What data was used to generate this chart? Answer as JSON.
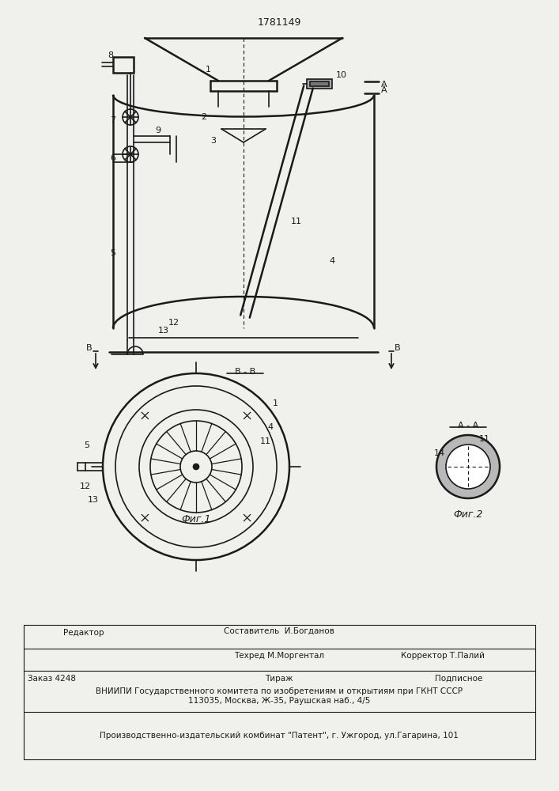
{
  "bg_color": "#f0f0ec",
  "line_color": "#1a1a1a",
  "fig_width": 7.07,
  "fig_height": 10.0,
  "patent_number": "1781149",
  "fig1_label": "Фиг.1",
  "fig2_label": "Фиг.2",
  "section_label_BB": "B - B",
  "section_label_AA": "A - A",
  "footer_editor": "Редактор",
  "footer_composer": "Составитель  И.Богданов",
  "footer_techred": "Техред М.Моргентал",
  "footer_corrector": "Корректор Т.Палий",
  "footer_order": "Заказ 4248",
  "footer_tirazh": "Тираж",
  "footer_podpisnoe": "Подписное",
  "footer_vniiipi": "ВНИИПИ Государственного комитета по изобретениям и открытиям при ГКНТ СССР",
  "footer_address": "113035, Москва, Ж-35, Раушская наб., 4/5",
  "footer_patent": "Производственно-издательский комбинат \"Патент\", г. Ужгород, ул.Гагарина, 101"
}
